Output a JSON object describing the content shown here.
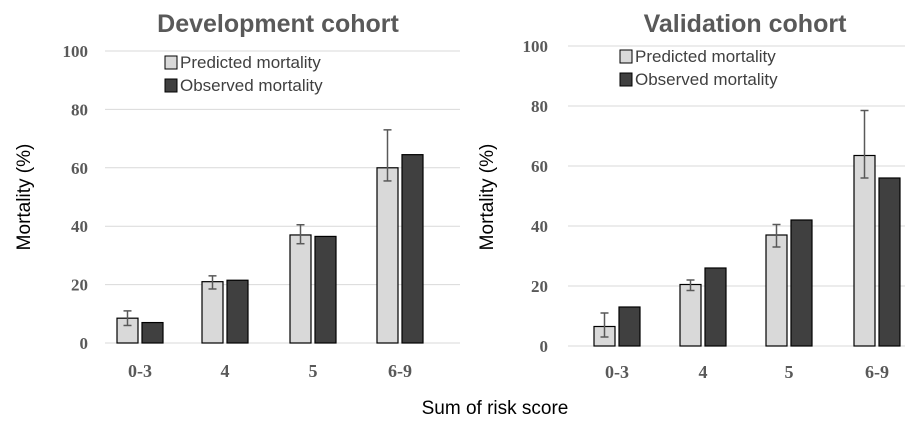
{
  "figure": {
    "shared_xlabel": "Sum of risk score"
  },
  "chart_data": [
    {
      "type": "bar",
      "title": "Development cohort",
      "ylabel": "Mortality (%)",
      "xlabel": "",
      "categories": [
        "0-3",
        "4",
        "5",
        "6-9"
      ],
      "ylim": [
        0,
        100
      ],
      "yticks": [
        0,
        20,
        40,
        60,
        80,
        100
      ],
      "grid": true,
      "legend_position": "top-left",
      "series": [
        {
          "name": "Predicted mortality",
          "color": "#d9d9d9",
          "values": [
            8.5,
            21,
            37,
            60
          ],
          "error": [
            [
              6,
              11
            ],
            [
              18.5,
              23
            ],
            [
              34,
              40.5
            ],
            [
              55.5,
              73
            ]
          ]
        },
        {
          "name": "Observed mortality",
          "color": "#404040",
          "values": [
            7,
            21.5,
            36.5,
            64.5
          ]
        }
      ]
    },
    {
      "type": "bar",
      "title": "Validation cohort",
      "ylabel": "Mortality (%)",
      "xlabel": "",
      "categories": [
        "0-3",
        "4",
        "5",
        "6-9"
      ],
      "ylim": [
        0,
        100
      ],
      "yticks": [
        0,
        20,
        40,
        60,
        80,
        100
      ],
      "grid": true,
      "legend_position": "top-left",
      "series": [
        {
          "name": "Predicted mortality",
          "color": "#d9d9d9",
          "values": [
            6.5,
            20.5,
            37,
            63.5
          ],
          "error": [
            [
              3,
              11
            ],
            [
              18.5,
              22
            ],
            [
              33,
              40.5
            ],
            [
              56,
              78.5
            ]
          ]
        },
        {
          "name": "Observed mortality",
          "color": "#404040",
          "values": [
            13,
            26,
            42,
            56
          ]
        }
      ]
    }
  ]
}
